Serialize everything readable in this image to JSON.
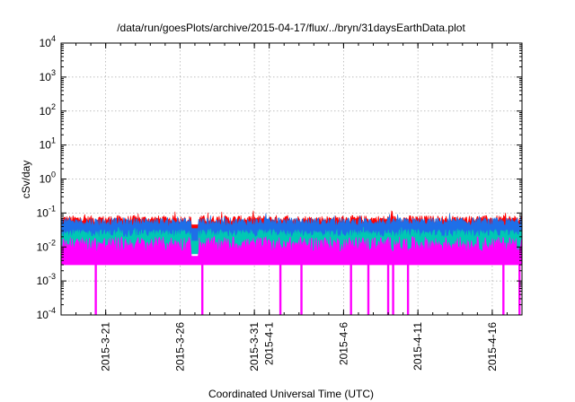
{
  "chart_data": {
    "type": "area",
    "title": "/data/run/goesPlots/archive/2015-04-17/flux/../bryn/31daysEarthData.plot",
    "xlabel": "Coordinated Universal Time (UTC)",
    "ylabel": "cSv/day",
    "yscale": "log",
    "ylim": [
      0.0001,
      10000
    ],
    "xlim": [
      "2015-03-18",
      "2015-04-18"
    ],
    "grid": true,
    "y_ticks": [
      {
        "base": "10",
        "exp": "-4"
      },
      {
        "base": "10",
        "exp": "-3"
      },
      {
        "base": "10",
        "exp": "-2"
      },
      {
        "base": "10",
        "exp": "-1"
      },
      {
        "base": "10",
        "exp": "0"
      },
      {
        "base": "10",
        "exp": "1"
      },
      {
        "base": "10",
        "exp": "2"
      },
      {
        "base": "10",
        "exp": "3"
      },
      {
        "base": "10",
        "exp": "4"
      }
    ],
    "x_ticks": [
      {
        "date": "2015-03-21",
        "label": "2015-3-21"
      },
      {
        "date": "2015-03-26",
        "label": "2015-3-26"
      },
      {
        "date": "2015-03-31",
        "label": "2015-3-31"
      },
      {
        "date": "2015-04-01",
        "label": "2015-4-1"
      },
      {
        "date": "2015-04-06",
        "label": "2015-4-6"
      },
      {
        "date": "2015-04-11",
        "label": "2015-4-11"
      },
      {
        "date": "2015-04-16",
        "label": "2015-4-16"
      }
    ],
    "series": [
      {
        "color": "#ff0000",
        "typical": 0.065,
        "range": [
          0.045,
          0.12
        ]
      },
      {
        "color": "#1e6fe8",
        "typical": 0.055,
        "range": [
          0.035,
          0.1
        ]
      },
      {
        "color": "#00c8b4",
        "typical": 0.025,
        "range": [
          0.015,
          0.04
        ]
      },
      {
        "color": "#ff00ff",
        "typical": 0.012,
        "range": [
          0.003,
          0.02
        ]
      }
    ],
    "dropouts": [
      {
        "date": "2015-03-20 08:00",
        "min": 0.0001
      },
      {
        "date": "2015-03-27 12:00",
        "min": 0.0001
      },
      {
        "date": "2015-04-01 18:00",
        "min": 0.0001
      },
      {
        "date": "2015-04-03 04:00",
        "min": 0.0001
      },
      {
        "date": "2015-04-06 12:00",
        "min": 0.0001
      },
      {
        "date": "2015-04-07 16:00",
        "min": 0.0001
      },
      {
        "date": "2015-04-09 00:00",
        "min": 0.0001
      },
      {
        "date": "2015-04-09 08:00",
        "min": 0.0001
      },
      {
        "date": "2015-04-10 08:00",
        "min": 0.0001
      },
      {
        "date": "2015-04-16 18:00",
        "min": 0.0001
      },
      {
        "date": "2015-04-17 20:00",
        "min": 0.0001
      }
    ]
  }
}
